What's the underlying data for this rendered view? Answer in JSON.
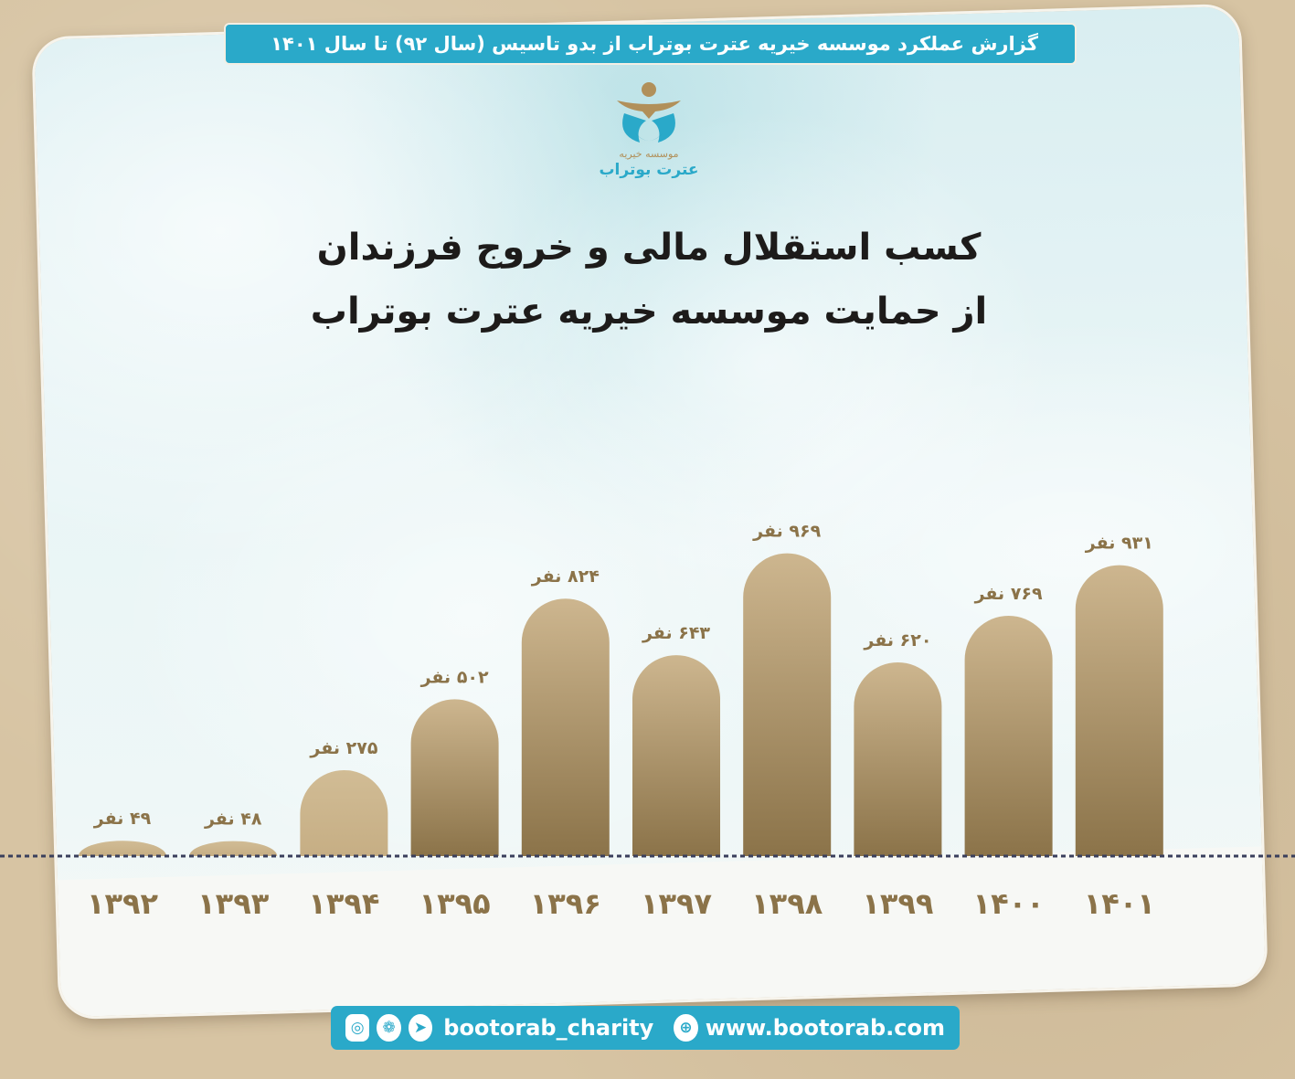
{
  "banner": {
    "text": "گزارش عملکرد موسسه خیریه عترت بوتراب از بدو تاسیس (سال ۹۲) تا سال ۱۴۰۱"
  },
  "logo": {
    "line1": "موسسه خیریه",
    "line2": "عترت بوتراب"
  },
  "title": {
    "line1": "کسب استقلال مالی و خروج فرزندان",
    "line2": "از حمایت موسسه خیریه عترت بوتراب"
  },
  "footer": {
    "handle": "bootorab_charity",
    "website": "www.bootorab.com",
    "icons": [
      "instagram-icon",
      "aparat-icon",
      "telegram-icon",
      "globe-icon"
    ]
  },
  "colors": {
    "accent": "#2aa9c9",
    "bar_light": "#cdb68f",
    "bar_dark": "#8b7349",
    "axis": "#3a3f5c"
  },
  "chart_data": {
    "type": "bar",
    "categories": [
      "۱۳۹۲",
      "۱۳۹۳",
      "۱۳۹۴",
      "۱۳۹۵",
      "۱۳۹۶",
      "۱۳۹۷",
      "۱۳۹۸",
      "۱۳۹۹",
      "۱۴۰۰",
      "۱۴۰۱"
    ],
    "values": [
      49,
      48,
      275,
      502,
      824,
      643,
      969,
      620,
      769,
      931
    ],
    "value_labels": [
      "۴۹ نفر",
      "۴۸ نفر",
      "۲۷۵ نفر",
      "۵۰۲ نفر",
      "۸۲۴ نفر",
      "۶۴۳ نفر",
      "۹۶۹ نفر",
      "۶۲۰ نفر",
      "۷۶۹ نفر",
      "۹۳۱ نفر"
    ],
    "ylim": [
      0,
      1000
    ],
    "grid": false,
    "legend": "none"
  }
}
